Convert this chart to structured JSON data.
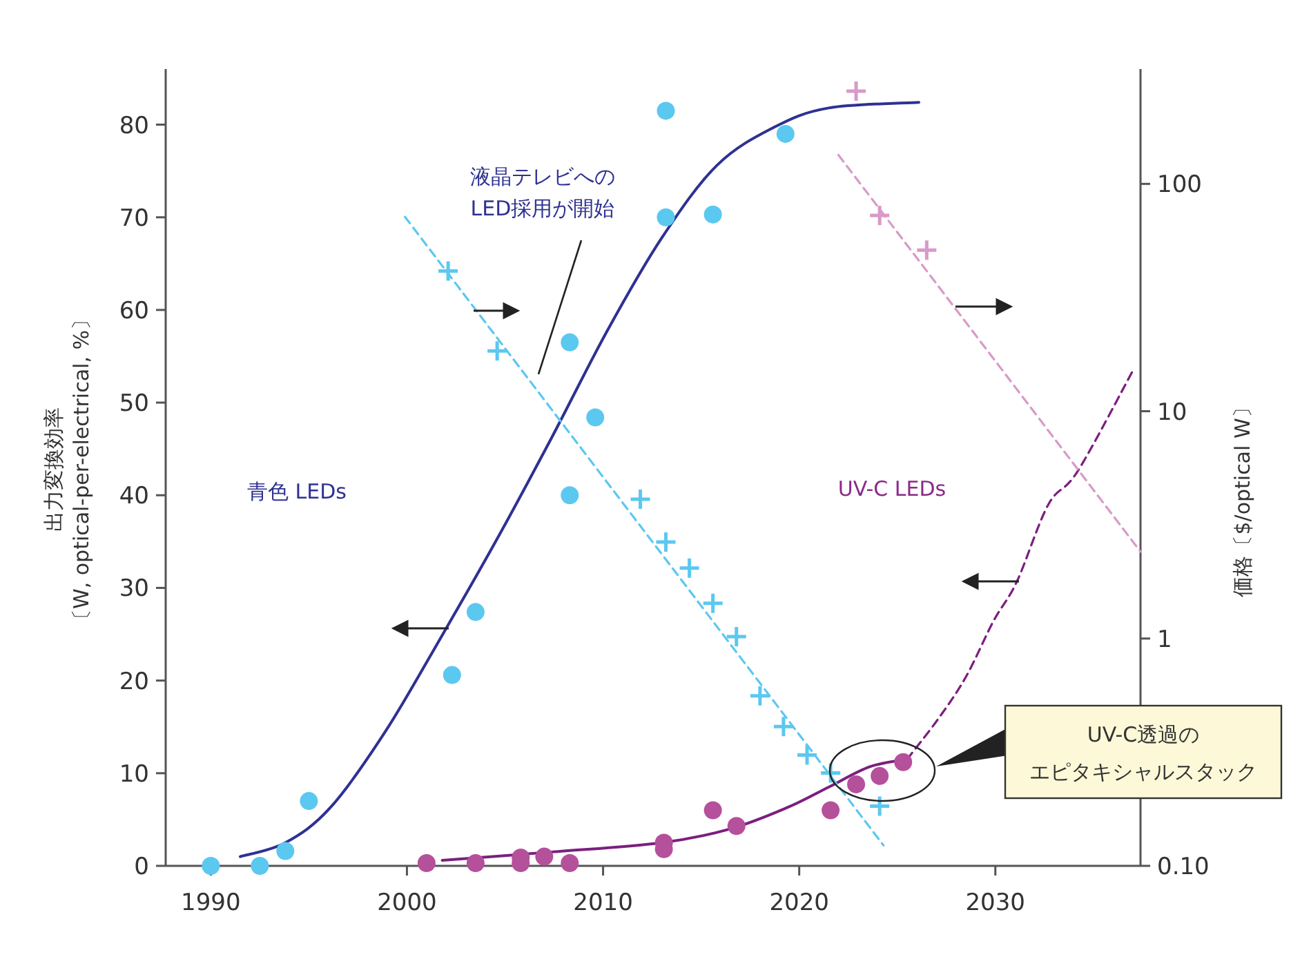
{
  "chart_data": {
    "type": "scatter",
    "ylabel": "出力変換効率〔W, optical-per-electrical, %〕",
    "y2label": "価格〔$/optical W〕",
    "xlim": [
      1987.7,
      2037.4
    ],
    "xticks": [
      1990,
      2000,
      2010,
      2020,
      2030
    ],
    "ylim": [
      0,
      86
    ],
    "yticks": [
      0,
      10,
      20,
      30,
      40,
      50,
      60,
      70,
      80
    ],
    "y2lim": [
      0.1,
      320
    ],
    "y2ticks": [
      {
        "value": 0.1,
        "label": "0.10"
      },
      1,
      10,
      100
    ],
    "log": "y2",
    "annotations": [
      "液晶テレビへの",
      "LED採用が開始",
      "青色 LEDs",
      "UV-C LEDs",
      "UV-C透過の",
      "エピタキシャルスタック"
    ],
    "series": [
      {
        "type": "line",
        "color": "#2e3192",
        "line_style": "solid",
        "marker": "none",
        "x": [
          1991.5,
          1993.8,
          1996.1,
          1998.9,
          2001.8,
          2004.6,
          2007.4,
          2010.2,
          2013.0,
          2015.8,
          2018.7,
          2021.5,
          2026.1
        ],
        "values": [
          1.0,
          2.5,
          6.3,
          14.5,
          24.9,
          35.3,
          46.3,
          57.7,
          67.8,
          75.6,
          79.7,
          81.8,
          82.4
        ]
      },
      {
        "color": "#5bc8f0",
        "marker": "circle",
        "x": [
          1990.0,
          1992.5,
          1993.8,
          1995.0,
          2002.3,
          2003.5,
          2008.3,
          2008.3,
          2009.6,
          2013.2,
          2013.2,
          2015.6,
          2019.3
        ],
        "values": [
          0,
          0,
          1.6,
          7.0,
          20.6,
          27.4,
          40,
          56.5,
          48.4,
          81.5,
          70,
          70.3,
          79
        ]
      },
      {
        "type": "line",
        "color": "#7b1f7e",
        "line_style": "solid",
        "marker": "none",
        "x": [
          2001.8,
          2007.4,
          2013.0,
          2016.5,
          2019.4,
          2021.5,
          2023.6,
          2025.5
        ],
        "values": [
          0.6,
          1.5,
          2.5,
          4.0,
          6.3,
          8.5,
          10.7,
          11.5
        ]
      },
      {
        "type": "line",
        "color": "#7b1f7e",
        "line_style": "dashed",
        "marker": "none",
        "x": [
          2025.5,
          2027.1,
          2028.5,
          2029.9,
          2031.1,
          2032.7,
          2034.2,
          2037.0
        ],
        "values": [
          11.5,
          15.9,
          20.4,
          26.4,
          30.7,
          39,
          42.6,
          53.4
        ]
      },
      {
        "color": "#b5509b",
        "marker": "circle",
        "x": [
          2001.0,
          2003.5,
          2005.8,
          2005.8,
          2007.0,
          2008.3,
          2013.1,
          2013.1,
          2015.6,
          2016.8,
          2021.6,
          2022.9,
          2024.1,
          2025.3
        ],
        "values": [
          0.3,
          0.3,
          0.9,
          0.3,
          1.0,
          0.3,
          2.5,
          1.8,
          6.0,
          4.3,
          6.0,
          8.8,
          9.7,
          11.2
        ]
      },
      {
        "type": "line",
        "axis": "y2",
        "color": "#5bc8f0",
        "line_style": "dashed",
        "marker": "none",
        "x": [
          1999.9,
          2024.3
        ],
        "values": [
          71.6,
          0.123
        ]
      },
      {
        "axis": "y2",
        "color": "#5bc8f0",
        "marker": "cross",
        "x": [
          2002.1,
          2004.6,
          2011.9,
          2013.2,
          2014.4,
          2015.6,
          2016.8,
          2018.0,
          2019.2,
          2020.4,
          2021.6,
          2024.1
        ],
        "values": [
          41.4,
          18.4,
          4.1,
          2.66,
          2.04,
          1.43,
          1.02,
          0.56,
          0.41,
          0.307,
          0.256,
          0.183
        ]
      },
      {
        "type": "line",
        "axis": "y2",
        "color": "#d89ac8",
        "line_style": "dashed",
        "marker": "none",
        "x": [
          2022.0,
          2037.4
        ],
        "values": [
          134,
          2.41
        ]
      },
      {
        "axis": "y2",
        "color": "#d89ac8",
        "marker": "cross",
        "x": [
          2022.9,
          2024.1,
          2026.5
        ],
        "values": [
          256,
          72.6,
          51.1
        ]
      }
    ]
  }
}
